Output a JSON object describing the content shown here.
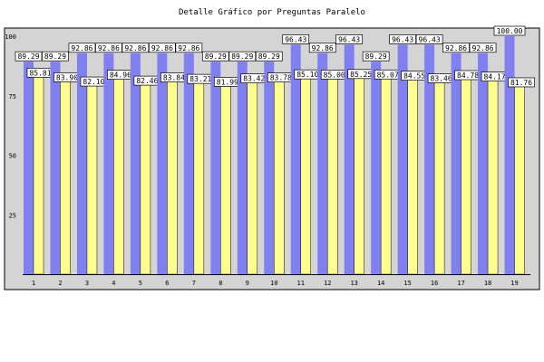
{
  "chart_data": {
    "type": "bar",
    "title": "Detalle Gráfico por Preguntas Paralelo",
    "xlabel": "",
    "ylabel": "",
    "ylim": [
      0,
      100
    ],
    "yticks": [
      "25",
      "50",
      "75",
      "100"
    ],
    "grid": false,
    "legend": "none",
    "categories": [
      "1",
      "2",
      "3",
      "4",
      "5",
      "6",
      "7",
      "8",
      "9",
      "10",
      "11",
      "12",
      "13",
      "14",
      "15",
      "16",
      "17",
      "18",
      "19"
    ],
    "series": [
      {
        "color": "#8080f0",
        "values": [
          89.29,
          89.29,
          92.86,
          92.86,
          92.86,
          92.86,
          92.86,
          89.29,
          89.29,
          89.29,
          96.43,
          92.86,
          96.43,
          89.29,
          96.43,
          96.43,
          92.86,
          92.86,
          100.0
        ]
      },
      {
        "color": "#ffff90",
        "values": [
          85.81,
          83.9,
          82.1,
          84.96,
          82.46,
          83.84,
          83.21,
          81.99,
          83.42,
          83.78,
          85.1,
          85.0,
          85.25,
          85.07,
          84.55,
          83.46,
          84.78,
          84.17,
          81.76
        ]
      }
    ],
    "value_labels": [
      [
        "89.29",
        "89.29",
        "92.86",
        "92.86",
        "92.86",
        "92.86",
        "92.86",
        "89.29",
        "89.29",
        "89.29",
        "96.43",
        "92.86",
        "96.43",
        "89.29",
        "96.43",
        "96.43",
        "92.86",
        "92.86",
        "100.00"
      ],
      [
        "85.81",
        "83.90",
        "82.10",
        "84.96",
        "82.46",
        "83.84",
        "83.21",
        "81.99",
        "83.42",
        "83.78",
        "85.10",
        "85.00",
        "85.25",
        "85.07",
        "84.55",
        "83.46",
        "84.78",
        "84.17",
        "81.76"
      ]
    ]
  },
  "colors": {
    "plot_background": "#d4d4d4",
    "category_label_muted": "#ffffff"
  }
}
